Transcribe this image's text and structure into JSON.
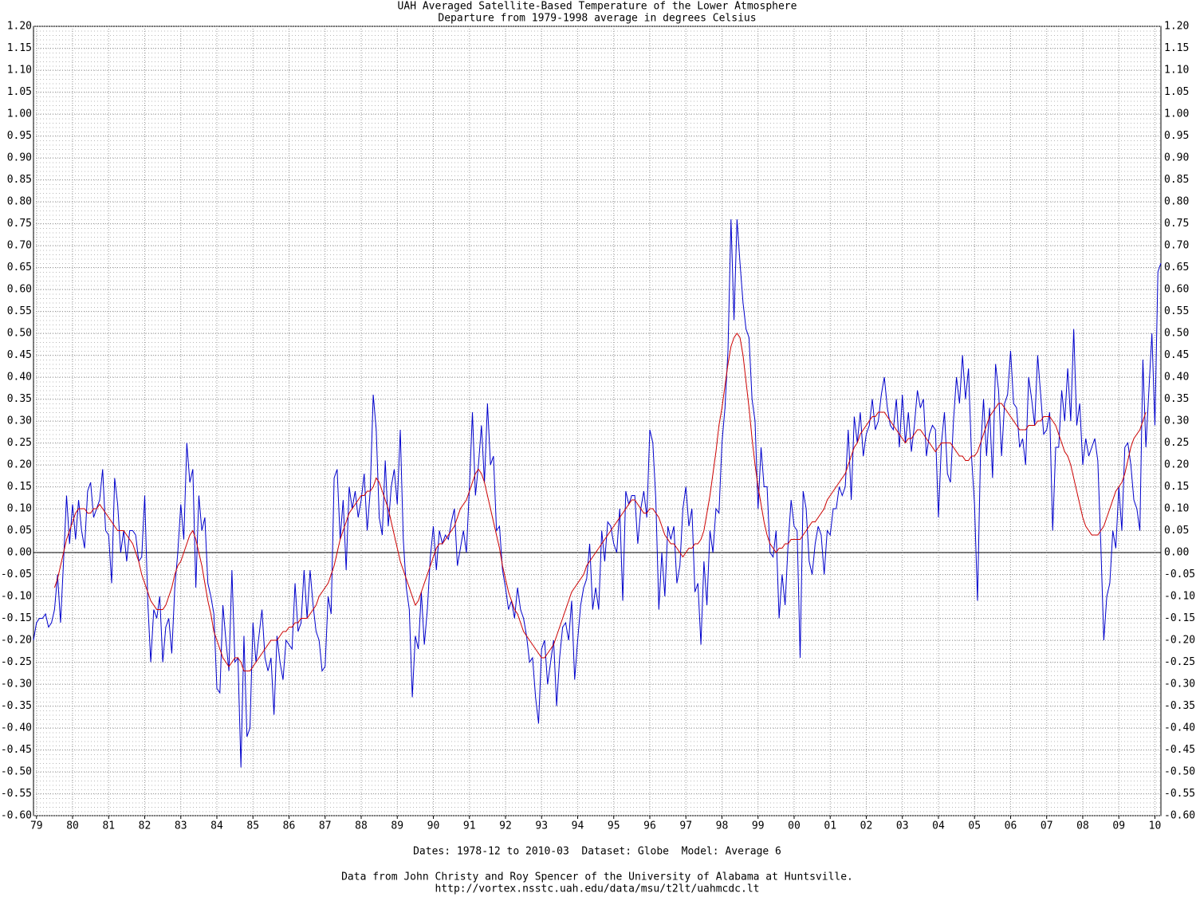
{
  "chart_data": {
    "type": "line",
    "title": "UAH Averaged Satellite-Based Temperature of the Lower Atmosphere",
    "subtitle": "Departure from 1979-1998 average in degrees Celsius",
    "footer": "Dates: 1978-12 to 2010-03  Dataset: Globe  Model: Average 6",
    "credit": "Data from John Christy and Roy Spencer of the University of Alabama at Huntsville.",
    "source": "http://vortex.nsstc.uah.edu/data/msu/t2lt/uahmcdc.lt",
    "start": "1978-12",
    "xlim": [
      "1978-12",
      "2010-03"
    ],
    "ylim": [
      -0.6,
      1.2
    ],
    "grid": true,
    "xticks": [
      {
        "value": 1979,
        "label": "79"
      },
      {
        "value": 1980,
        "label": "80"
      },
      {
        "value": 1981,
        "label": "81"
      },
      {
        "value": 1982,
        "label": "82"
      },
      {
        "value": 1983,
        "label": "83"
      },
      {
        "value": 1984,
        "label": "84"
      },
      {
        "value": 1985,
        "label": "85"
      },
      {
        "value": 1986,
        "label": "86"
      },
      {
        "value": 1987,
        "label": "87"
      },
      {
        "value": 1988,
        "label": "88"
      },
      {
        "value": 1989,
        "label": "89"
      },
      {
        "value": 1990,
        "label": "90"
      },
      {
        "value": 1991,
        "label": "91"
      },
      {
        "value": 1992,
        "label": "92"
      },
      {
        "value": 1993,
        "label": "93"
      },
      {
        "value": 1994,
        "label": "94"
      },
      {
        "value": 1995,
        "label": "95"
      },
      {
        "value": 1996,
        "label": "96"
      },
      {
        "value": 1997,
        "label": "97"
      },
      {
        "value": 1998,
        "label": "98"
      },
      {
        "value": 1999,
        "label": "99"
      },
      {
        "value": 2000,
        "label": "00"
      },
      {
        "value": 2001,
        "label": "01"
      },
      {
        "value": 2002,
        "label": "02"
      },
      {
        "value": 2003,
        "label": "03"
      },
      {
        "value": 2004,
        "label": "04"
      },
      {
        "value": 2005,
        "label": "05"
      },
      {
        "value": 2006,
        "label": "06"
      },
      {
        "value": 2007,
        "label": "07"
      },
      {
        "value": 2008,
        "label": "08"
      },
      {
        "value": 2009,
        "label": "09"
      },
      {
        "value": 2010,
        "label": "10"
      }
    ],
    "yticks": [
      {
        "value": 1.2,
        "label": "1.20"
      },
      {
        "value": 1.15,
        "label": "1.15"
      },
      {
        "value": 1.1,
        "label": "1.10"
      },
      {
        "value": 1.05,
        "label": "1.05"
      },
      {
        "value": 1.0,
        "label": "1.00"
      },
      {
        "value": 0.95,
        "label": "0.95"
      },
      {
        "value": 0.9,
        "label": "0.90"
      },
      {
        "value": 0.85,
        "label": "0.85"
      },
      {
        "value": 0.8,
        "label": "0.80"
      },
      {
        "value": 0.75,
        "label": "0.75"
      },
      {
        "value": 0.7,
        "label": "0.70"
      },
      {
        "value": 0.65,
        "label": "0.65"
      },
      {
        "value": 0.6,
        "label": "0.60"
      },
      {
        "value": 0.55,
        "label": "0.55"
      },
      {
        "value": 0.5,
        "label": "0.50"
      },
      {
        "value": 0.45,
        "label": "0.45"
      },
      {
        "value": 0.4,
        "label": "0.40"
      },
      {
        "value": 0.35,
        "label": "0.35"
      },
      {
        "value": 0.3,
        "label": "0.30"
      },
      {
        "value": 0.25,
        "label": "0.25"
      },
      {
        "value": 0.2,
        "label": "0.20"
      },
      {
        "value": 0.15,
        "label": "0.15"
      },
      {
        "value": 0.1,
        "label": "0.10"
      },
      {
        "value": 0.05,
        "label": "0.05"
      },
      {
        "value": 0,
        "label": "0.00"
      },
      {
        "value": -0.05,
        "label": "-0.05"
      },
      {
        "value": -0.1,
        "label": "-0.10"
      },
      {
        "value": -0.15,
        "label": "-0.15"
      },
      {
        "value": -0.2,
        "label": "-0.20"
      },
      {
        "value": -0.25,
        "label": "-0.25"
      },
      {
        "value": -0.3,
        "label": "-0.30"
      },
      {
        "value": -0.35,
        "label": "-0.35"
      },
      {
        "value": -0.4,
        "label": "-0.40"
      },
      {
        "value": -0.45,
        "label": "-0.45"
      },
      {
        "value": -0.5,
        "label": "-0.50"
      },
      {
        "value": -0.55,
        "label": "-0.55"
      },
      {
        "value": -0.6,
        "label": "-0.60"
      }
    ],
    "series": [
      {
        "color": "#0000cc",
        "values": [
          -0.2,
          -0.16,
          -0.15,
          -0.15,
          -0.14,
          -0.17,
          -0.16,
          -0.13,
          -0.05,
          -0.16,
          -0.02,
          0.13,
          0.02,
          0.11,
          0.03,
          0.12,
          0.05,
          0.01,
          0.14,
          0.16,
          0.08,
          0.1,
          0.12,
          0.19,
          0.05,
          0.04,
          -0.07,
          0.17,
          0.11,
          0.0,
          0.05,
          -0.02,
          0.05,
          0.05,
          0.04,
          -0.02,
          -0.01,
          0.13,
          -0.11,
          -0.25,
          -0.13,
          -0.15,
          -0.1,
          -0.25,
          -0.17,
          -0.15,
          -0.23,
          -0.08,
          0.0,
          0.11,
          0.03,
          0.25,
          0.16,
          0.19,
          -0.08,
          0.13,
          0.05,
          0.08,
          -0.07,
          -0.1,
          -0.14,
          -0.31,
          -0.32,
          -0.12,
          -0.2,
          -0.27,
          -0.04,
          -0.25,
          -0.24,
          -0.49,
          -0.19,
          -0.42,
          -0.4,
          -0.16,
          -0.25,
          -0.19,
          -0.13,
          -0.24,
          -0.27,
          -0.24,
          -0.37,
          -0.19,
          -0.25,
          -0.29,
          -0.2,
          -0.21,
          -0.22,
          -0.07,
          -0.18,
          -0.16,
          -0.04,
          -0.15,
          -0.04,
          -0.12,
          -0.18,
          -0.2,
          -0.27,
          -0.26,
          -0.1,
          -0.14,
          0.17,
          0.19,
          0.03,
          0.12,
          -0.04,
          0.15,
          0.1,
          0.14,
          0.08,
          0.12,
          0.18,
          0.05,
          0.14,
          0.36,
          0.28,
          0.08,
          0.04,
          0.21,
          0.06,
          0.15,
          0.19,
          0.11,
          0.28,
          0.03,
          -0.08,
          -0.13,
          -0.33,
          -0.19,
          -0.22,
          -0.09,
          -0.21,
          -0.13,
          -0.01,
          0.06,
          -0.04,
          0.05,
          0.02,
          0.04,
          0.03,
          0.07,
          0.1,
          -0.03,
          0.01,
          0.05,
          0.0,
          0.15,
          0.32,
          0.13,
          0.2,
          0.29,
          0.16,
          0.34,
          0.2,
          0.22,
          0.05,
          0.06,
          -0.04,
          -0.08,
          -0.13,
          -0.11,
          -0.15,
          -0.08,
          -0.13,
          -0.15,
          -0.19,
          -0.25,
          -0.24,
          -0.33,
          -0.39,
          -0.22,
          -0.2,
          -0.3,
          -0.25,
          -0.2,
          -0.35,
          -0.24,
          -0.17,
          -0.16,
          -0.2,
          -0.11,
          -0.29,
          -0.2,
          -0.12,
          -0.08,
          -0.06,
          0.02,
          -0.13,
          -0.08,
          -0.13,
          0.05,
          -0.02,
          0.07,
          0.06,
          0.02,
          0.0,
          0.1,
          -0.11,
          0.14,
          0.11,
          0.13,
          0.13,
          0.02,
          0.1,
          0.14,
          0.08,
          0.28,
          0.25,
          0.12,
          -0.13,
          0.0,
          -0.1,
          0.06,
          0.03,
          0.06,
          -0.07,
          -0.03,
          0.1,
          0.15,
          0.06,
          0.1,
          -0.09,
          -0.07,
          -0.21,
          -0.02,
          -0.12,
          0.05,
          0.0,
          0.1,
          0.09,
          0.25,
          0.33,
          0.46,
          0.76,
          0.53,
          0.76,
          0.66,
          0.57,
          0.51,
          0.49,
          0.35,
          0.3,
          0.1,
          0.24,
          0.15,
          0.15,
          0.0,
          -0.01,
          0.05,
          -0.15,
          -0.05,
          -0.12,
          0.02,
          0.12,
          0.06,
          0.05,
          -0.24,
          0.14,
          0.1,
          -0.02,
          -0.05,
          0.02,
          0.06,
          0.04,
          -0.05,
          0.05,
          0.04,
          0.1,
          0.1,
          0.15,
          0.13,
          0.15,
          0.28,
          0.12,
          0.31,
          0.25,
          0.32,
          0.22,
          0.27,
          0.29,
          0.35,
          0.28,
          0.3,
          0.36,
          0.4,
          0.33,
          0.29,
          0.28,
          0.35,
          0.24,
          0.36,
          0.25,
          0.32,
          0.23,
          0.29,
          0.37,
          0.33,
          0.35,
          0.22,
          0.27,
          0.29,
          0.28,
          0.08,
          0.25,
          0.32,
          0.18,
          0.16,
          0.3,
          0.4,
          0.34,
          0.45,
          0.35,
          0.42,
          0.22,
          0.11,
          -0.11,
          0.23,
          0.35,
          0.22,
          0.33,
          0.17,
          0.43,
          0.37,
          0.22,
          0.34,
          0.36,
          0.46,
          0.34,
          0.33,
          0.24,
          0.26,
          0.2,
          0.4,
          0.35,
          0.29,
          0.45,
          0.36,
          0.27,
          0.28,
          0.32,
          0.05,
          0.24,
          0.24,
          0.37,
          0.3,
          0.42,
          0.3,
          0.51,
          0.29,
          0.34,
          0.2,
          0.26,
          0.22,
          0.24,
          0.26,
          0.21,
          0.02,
          -0.2,
          -0.1,
          -0.07,
          0.05,
          0.01,
          0.15,
          0.05,
          0.24,
          0.25,
          0.2,
          0.12,
          0.1,
          0.05,
          0.44,
          0.24,
          0.37,
          0.5,
          0.29,
          0.64,
          0.66
        ]
      },
      {
        "color": "#cc0000",
        "values": [
          null,
          null,
          null,
          null,
          null,
          null,
          null,
          -0.08,
          -0.06,
          -0.03,
          0.0,
          0.03,
          0.05,
          0.07,
          0.09,
          0.1,
          0.1,
          0.1,
          0.09,
          0.09,
          0.1,
          0.1,
          0.11,
          0.1,
          0.09,
          0.08,
          0.07,
          0.06,
          0.05,
          0.05,
          0.05,
          0.04,
          0.03,
          0.02,
          0.0,
          -0.02,
          -0.05,
          -0.07,
          -0.09,
          -0.11,
          -0.12,
          -0.13,
          -0.13,
          -0.13,
          -0.12,
          -0.1,
          -0.08,
          -0.05,
          -0.03,
          -0.02,
          0.0,
          0.02,
          0.04,
          0.05,
          0.03,
          0.0,
          -0.03,
          -0.07,
          -0.11,
          -0.14,
          -0.18,
          -0.2,
          -0.22,
          -0.24,
          -0.25,
          -0.26,
          -0.25,
          -0.24,
          -0.24,
          -0.25,
          -0.27,
          -0.27,
          -0.27,
          -0.26,
          -0.25,
          -0.24,
          -0.23,
          -0.22,
          -0.21,
          -0.2,
          -0.2,
          -0.2,
          -0.19,
          -0.18,
          -0.18,
          -0.17,
          -0.17,
          -0.16,
          -0.16,
          -0.15,
          -0.15,
          -0.15,
          -0.14,
          -0.13,
          -0.12,
          -0.1,
          -0.09,
          -0.08,
          -0.07,
          -0.05,
          -0.03,
          0.0,
          0.03,
          0.05,
          0.07,
          0.09,
          0.1,
          0.11,
          0.12,
          0.13,
          0.13,
          0.14,
          0.14,
          0.15,
          0.17,
          0.16,
          0.14,
          0.12,
          0.1,
          0.07,
          0.04,
          0.01,
          -0.02,
          -0.04,
          -0.06,
          -0.08,
          -0.1,
          -0.12,
          -0.11,
          -0.09,
          -0.07,
          -0.05,
          -0.03,
          -0.01,
          0.01,
          0.02,
          0.02,
          0.03,
          0.04,
          0.05,
          0.06,
          0.08,
          0.1,
          0.11,
          0.12,
          0.14,
          0.16,
          0.18,
          0.19,
          0.18,
          0.16,
          0.13,
          0.1,
          0.07,
          0.04,
          0.01,
          -0.03,
          -0.06,
          -0.09,
          -0.11,
          -0.13,
          -0.14,
          -0.16,
          -0.18,
          -0.19,
          -0.2,
          -0.21,
          -0.22,
          -0.23,
          -0.24,
          -0.24,
          -0.23,
          -0.22,
          -0.21,
          -0.19,
          -0.17,
          -0.15,
          -0.13,
          -0.11,
          -0.09,
          -0.08,
          -0.07,
          -0.06,
          -0.05,
          -0.03,
          -0.02,
          -0.01,
          0.0,
          0.01,
          0.02,
          0.03,
          0.04,
          0.05,
          0.06,
          0.07,
          0.08,
          0.09,
          0.1,
          0.11,
          0.12,
          0.12,
          0.11,
          0.1,
          0.09,
          0.09,
          0.1,
          0.1,
          0.09,
          0.08,
          0.06,
          0.04,
          0.03,
          0.02,
          0.02,
          0.01,
          0.0,
          -0.01,
          0.0,
          0.01,
          0.01,
          0.02,
          0.02,
          0.03,
          0.05,
          0.09,
          0.13,
          0.18,
          0.23,
          0.29,
          0.33,
          0.38,
          0.43,
          0.47,
          0.49,
          0.5,
          0.49,
          0.45,
          0.39,
          0.33,
          0.26,
          0.2,
          0.15,
          0.11,
          0.07,
          0.04,
          0.02,
          0.01,
          0.0,
          0.01,
          0.01,
          0.02,
          0.02,
          0.03,
          0.03,
          0.03,
          0.03,
          0.04,
          0.05,
          0.06,
          0.07,
          0.07,
          0.08,
          0.09,
          0.1,
          0.12,
          0.13,
          0.14,
          0.15,
          0.16,
          0.17,
          0.18,
          0.2,
          0.22,
          0.24,
          0.25,
          0.27,
          0.28,
          0.29,
          0.3,
          0.31,
          0.31,
          0.32,
          0.32,
          0.32,
          0.31,
          0.3,
          0.29,
          0.28,
          0.27,
          0.26,
          0.25,
          0.26,
          0.26,
          0.27,
          0.28,
          0.28,
          0.27,
          0.26,
          0.25,
          0.24,
          0.23,
          0.24,
          0.25,
          0.25,
          0.25,
          0.25,
          0.24,
          0.23,
          0.22,
          0.22,
          0.21,
          0.21,
          0.22,
          0.22,
          0.23,
          0.25,
          0.27,
          0.29,
          0.31,
          0.32,
          0.33,
          0.34,
          0.34,
          0.33,
          0.32,
          0.31,
          0.3,
          0.29,
          0.28,
          0.28,
          0.28,
          0.29,
          0.29,
          0.29,
          0.3,
          0.3,
          0.31,
          0.31,
          0.31,
          0.3,
          0.29,
          0.27,
          0.25,
          0.23,
          0.22,
          0.2,
          0.17,
          0.14,
          0.11,
          0.08,
          0.06,
          0.05,
          0.04,
          0.04,
          0.04,
          0.05,
          0.06,
          0.08,
          0.1,
          0.12,
          0.14,
          0.15,
          0.16,
          0.18,
          0.21,
          0.24,
          0.26,
          0.27,
          0.28,
          0.3,
          0.32,
          null,
          null,
          null,
          null,
          null
        ]
      }
    ]
  }
}
